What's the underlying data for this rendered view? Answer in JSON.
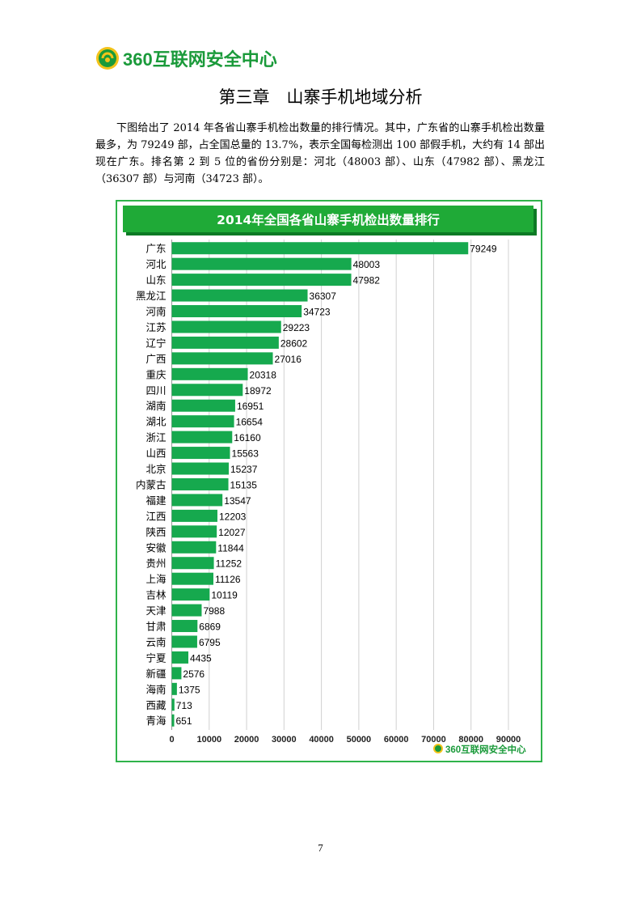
{
  "header": {
    "brand": "360互联网安全中心"
  },
  "chapter_title": "第三章　山寨手机地域分析",
  "paragraph": "下图给出了 2014 年各省山寨手机检出数量的排行情况。其中，广东省的山寨手机检出数量最多，为 79249 部，占全国总量的 13.7%，表示全国每检测出 100 部假手机，大约有 14 部出现在广东。排名第 2 到 5 位的省份分别是：河北（48003 部）、山东（47982 部）、黑龙江（36307 部）与河南（34723 部）。",
  "chart_footer_brand": "360互联网安全中心",
  "page_number": "7",
  "colors": {
    "bar": "#16a94e",
    "banner": "#1faa37",
    "border": "#2fb34a",
    "brand": "#1a9a3a"
  },
  "chart_data": {
    "type": "bar",
    "orientation": "horizontal",
    "title": "2014年全国各省山寨手机检出数量排行",
    "categories": [
      "广东",
      "河北",
      "山东",
      "黑龙江",
      "河南",
      "江苏",
      "辽宁",
      "广西",
      "重庆",
      "四川",
      "湖南",
      "湖北",
      "浙江",
      "山西",
      "北京",
      "内蒙古",
      "福建",
      "江西",
      "陕西",
      "安徽",
      "贵州",
      "上海",
      "吉林",
      "天津",
      "甘肃",
      "云南",
      "宁夏",
      "新疆",
      "海南",
      "西藏",
      "青海"
    ],
    "values": [
      79249,
      48003,
      47982,
      36307,
      34723,
      29223,
      28602,
      27016,
      20318,
      18972,
      16951,
      16654,
      16160,
      15563,
      15237,
      15135,
      13547,
      12203,
      12027,
      11844,
      11252,
      11126,
      10119,
      7988,
      6869,
      6795,
      4435,
      2576,
      1375,
      713,
      651
    ],
    "xlim": [
      0,
      90000
    ],
    "xticks": [
      0,
      10000,
      20000,
      30000,
      40000,
      50000,
      60000,
      70000,
      80000,
      90000
    ],
    "grid": true,
    "xlabel": "",
    "ylabel": ""
  }
}
